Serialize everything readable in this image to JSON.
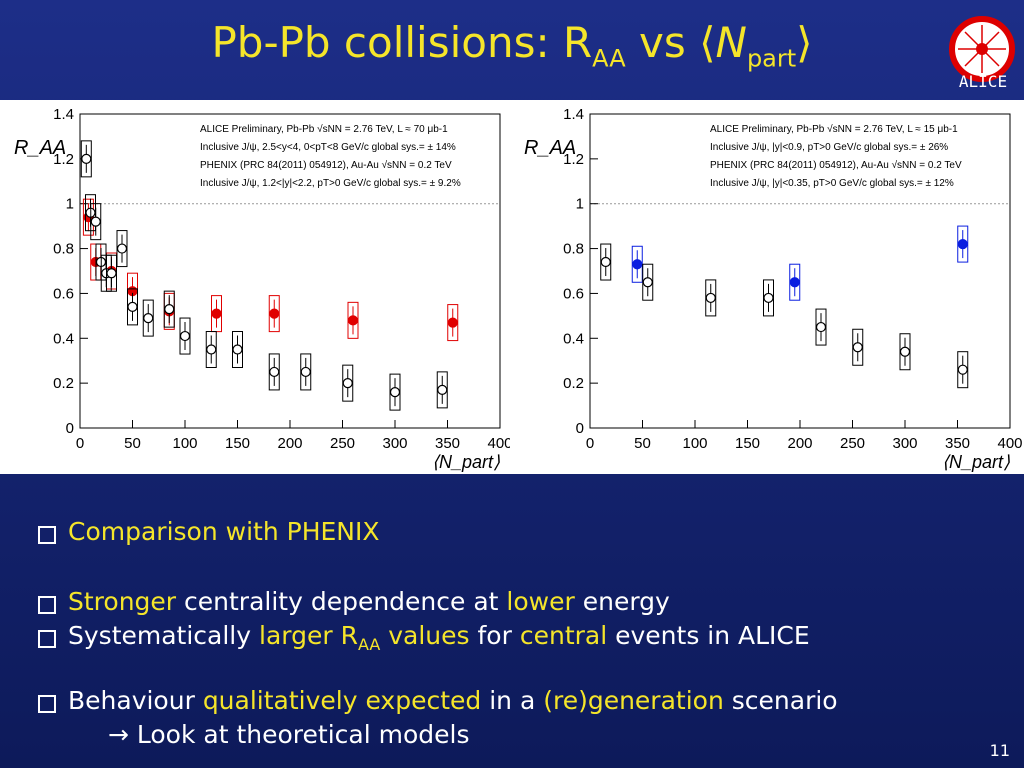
{
  "title": {
    "main": "Pb-Pb collisions: R",
    "sub": "AA",
    "mid": " vs ⟨",
    "n": "N",
    "part": "part",
    "end": "⟩"
  },
  "logo": {
    "label": "ALICE"
  },
  "chart_data": [
    {
      "type": "scatter",
      "ylabel": "R_AA",
      "xlabel": "⟨N_part⟩",
      "xlim": [
        0,
        400
      ],
      "ylim": [
        0,
        1.4
      ],
      "xticks": [
        0,
        50,
        100,
        150,
        200,
        250,
        300,
        350,
        400
      ],
      "yticks": [
        0,
        0.2,
        0.4,
        0.6,
        0.8,
        1,
        1.2,
        1.4
      ],
      "legend": [
        "ALICE Preliminary, Pb-Pb   √sNN = 2.76 TeV, L ≈ 70 μb-1",
        "Inclusive J/ψ, 2.5<y<4, 0<pT<8 GeV/c   global sys.= ± 14%",
        "PHENIX (PRC 84(2011) 054912), Au-Au   √sNN = 0.2 TeV",
        "Inclusive J/ψ, 1.2<|y|<2.2, pT>0 GeV/c   global sys.= ± 9.2%"
      ],
      "series": [
        {
          "name": "ALICE",
          "color": "#e00000",
          "filled": true,
          "x": [
            8,
            15,
            30,
            50,
            85,
            130,
            185,
            260,
            355
          ],
          "y": [
            0.94,
            0.74,
            0.7,
            0.61,
            0.52,
            0.51,
            0.51,
            0.48,
            0.47
          ]
        },
        {
          "name": "PHENIX",
          "color": "#000000",
          "filled": false,
          "x": [
            6,
            10,
            15,
            20,
            25,
            30,
            40,
            50,
            65,
            85,
            100,
            125,
            150,
            185,
            215,
            255,
            300,
            345
          ],
          "y": [
            1.2,
            0.96,
            0.92,
            0.74,
            0.69,
            0.69,
            0.8,
            0.54,
            0.49,
            0.53,
            0.41,
            0.35,
            0.35,
            0.25,
            0.25,
            0.2,
            0.16,
            0.17
          ]
        }
      ]
    },
    {
      "type": "scatter",
      "ylabel": "R_AA",
      "xlabel": "⟨N_part⟩",
      "xlim": [
        0,
        400
      ],
      "ylim": [
        0,
        1.4
      ],
      "xticks": [
        0,
        50,
        100,
        150,
        200,
        250,
        300,
        350,
        400
      ],
      "yticks": [
        0,
        0.2,
        0.4,
        0.6,
        0.8,
        1,
        1.2,
        1.4
      ],
      "legend": [
        "ALICE Preliminary, Pb-Pb   √sNN = 2.76 TeV, L ≈ 15 μb-1",
        "Inclusive J/ψ, |y|<0.9, pT>0 GeV/c   global sys.= ± 26%",
        "PHENIX (PRC 84(2011) 054912), Au-Au   √sNN = 0.2 TeV",
        "Inclusive J/ψ, |y|<0.35, pT>0 GeV/c   global sys.= ± 12%"
      ],
      "series": [
        {
          "name": "ALICE",
          "color": "#0a1ee0",
          "filled": true,
          "x": [
            45,
            195,
            355
          ],
          "y": [
            0.73,
            0.65,
            0.82
          ]
        },
        {
          "name": "PHENIX",
          "color": "#000000",
          "filled": false,
          "x": [
            15,
            55,
            115,
            170,
            220,
            255,
            300,
            355
          ],
          "y": [
            0.74,
            0.65,
            0.58,
            0.58,
            0.45,
            0.36,
            0.34,
            0.26
          ]
        }
      ]
    }
  ],
  "bullets": {
    "b1": "Comparison with PHENIX",
    "b2a": "Stronger",
    "b2b": " centrality dependence at ",
    "b2c": "lower",
    "b2d": " energy",
    "b3a": "Systematically ",
    "b3b": "larger R",
    "b3c": "AA",
    "b3d": " values",
    "b3e": " for ",
    "b3f": "central",
    "b3g": " events in ALICE",
    "b4a": "Behaviour ",
    "b4b": "qualitatively expected",
    "b4c": " in a ",
    "b4d": "(re)generation",
    "b4e": " scenario",
    "b5": "→ Look at theoretical models"
  },
  "page_number": "11"
}
